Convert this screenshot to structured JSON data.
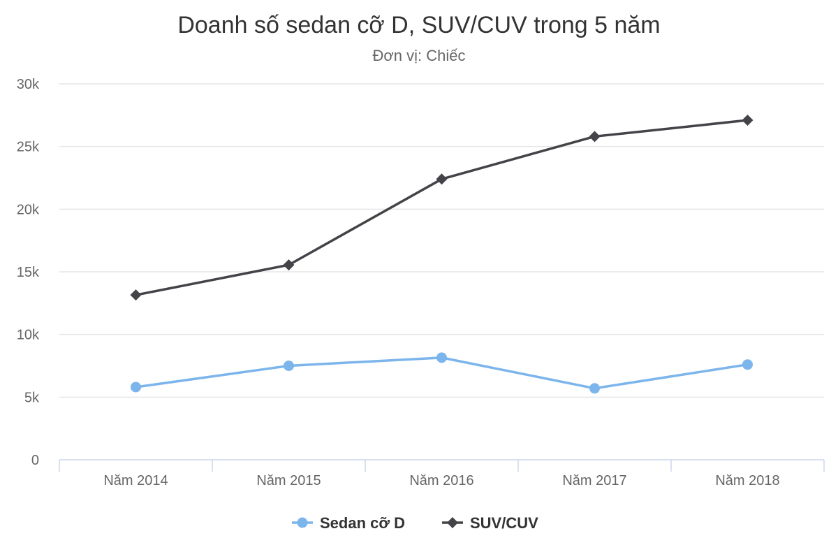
{
  "chart_data": {
    "type": "line",
    "title": "Doanh số sedan cỡ D, SUV/CUV trong 5 năm",
    "subtitle": "Đơn vị: Chiếc",
    "xlabel": "",
    "ylabel": "",
    "categories": [
      "Năm 2014",
      "Năm 2015",
      "Năm 2016",
      "Năm 2017",
      "Năm 2018"
    ],
    "ylim": [
      0,
      30000
    ],
    "yticks": [
      0,
      5000,
      10000,
      15000,
      20000,
      25000,
      30000
    ],
    "ytick_labels": [
      "0",
      "5k",
      "10k",
      "15k",
      "20k",
      "25k",
      "30k"
    ],
    "grid": true,
    "legend_position": "bottom-center",
    "series": [
      {
        "name": "Sedan cỡ D",
        "color": "#7cb5ec",
        "marker": "circle",
        "values": [
          5800,
          7500,
          8150,
          5700,
          7600
        ]
      },
      {
        "name": "SUV/CUV",
        "color": "#434348",
        "marker": "diamond",
        "values": [
          13150,
          15550,
          22400,
          25800,
          27100
        ]
      }
    ]
  }
}
